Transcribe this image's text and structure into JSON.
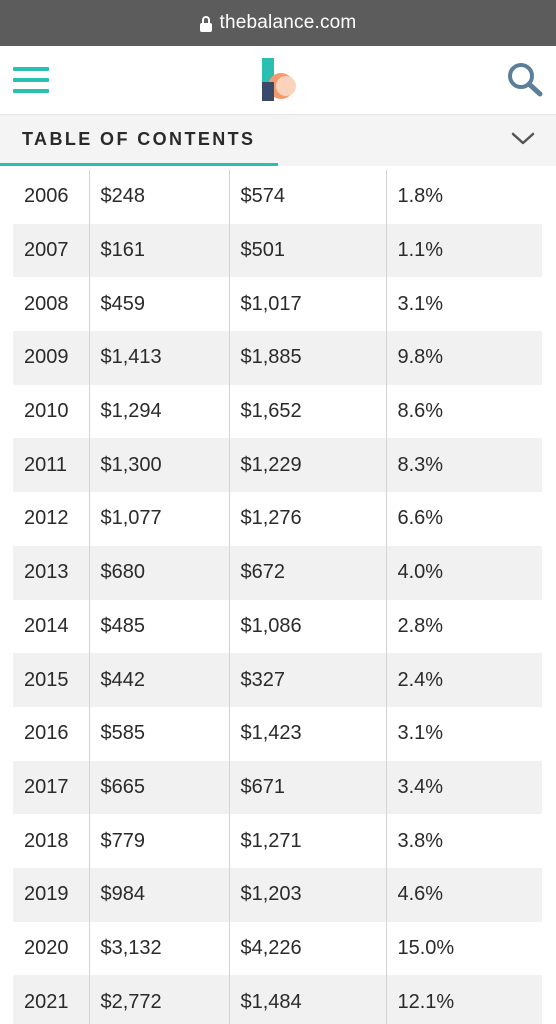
{
  "browser": {
    "url": "thebalance.com",
    "lock_icon": "lock-icon"
  },
  "header": {
    "menu_icon": "hamburger-menu-icon",
    "logo_icon": "thebalance-logo",
    "search_icon": "search-icon",
    "accent_color": "#2bbfb2"
  },
  "toc": {
    "label": "TABLE OF CONTENTS",
    "chevron_icon": "chevron-down-icon"
  },
  "table": {
    "rows": [
      [
        "2006",
        "$248",
        "$574",
        "1.8%"
      ],
      [
        "2007",
        "$161",
        "$501",
        "1.1%"
      ],
      [
        "2008",
        "$459",
        "$1,017",
        "3.1%"
      ],
      [
        "2009",
        "$1,413",
        "$1,885",
        "9.8%"
      ],
      [
        "2010",
        "$1,294",
        "$1,652",
        "8.6%"
      ],
      [
        "2011",
        "$1,300",
        "$1,229",
        "8.3%"
      ],
      [
        "2012",
        "$1,077",
        "$1,276",
        "6.6%"
      ],
      [
        "2013",
        "$680",
        "$672",
        "4.0%"
      ],
      [
        "2014",
        "$485",
        "$1,086",
        "2.8%"
      ],
      [
        "2015",
        "$442",
        "$327",
        "2.4%"
      ],
      [
        "2016",
        "$585",
        "$1,423",
        "3.1%"
      ],
      [
        "2017",
        "$665",
        "$671",
        "3.4%"
      ],
      [
        "2018",
        "$779",
        "$1,271",
        "3.8%"
      ],
      [
        "2019",
        "$984",
        "$1,203",
        "4.6%"
      ],
      [
        "2020",
        "$3,132",
        "$4,226",
        "15.0%"
      ],
      [
        "2021",
        "$2,772",
        "$1,484",
        "12.1%"
      ]
    ]
  }
}
